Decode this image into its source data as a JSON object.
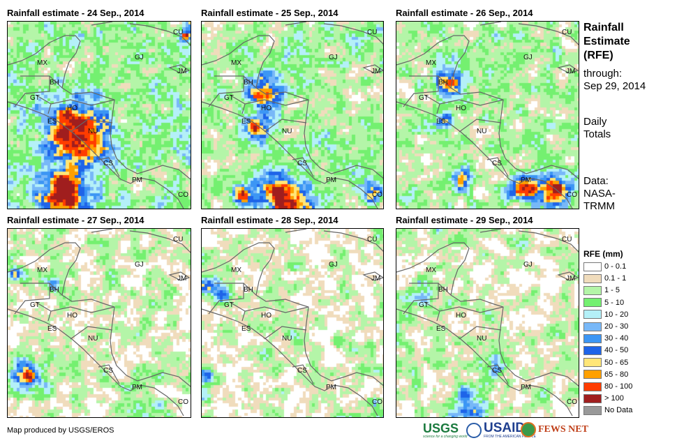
{
  "panels": [
    {
      "title": "Rainfall estimate - 24 Sep., 2014"
    },
    {
      "title": "Rainfall estimate - 25 Sep., 2014"
    },
    {
      "title": "Rainfall estimate - 26 Sep., 2014"
    },
    {
      "title": "Rainfall estimate - 27 Sep., 2014"
    },
    {
      "title": "Rainfall estimate - 28 Sep., 2014"
    },
    {
      "title": "Rainfall estimate - 29 Sep., 2014"
    }
  ],
  "country_labels": [
    "MX",
    "BH",
    "GT",
    "HO",
    "ES",
    "NU",
    "CS",
    "PM",
    "CO",
    "CU",
    "GJ",
    "JM"
  ],
  "side": {
    "title_lines": [
      "Rainfall",
      "Estimate",
      "(RFE)"
    ],
    "through": "through:",
    "date": "Sep 29, 2014",
    "daily": "Daily",
    "totals": "Totals",
    "data_label": "Data:",
    "source1": "NASA-",
    "source2": "TRMM"
  },
  "legend": {
    "title": "RFE (mm)",
    "items": [
      {
        "label": "0 - 0.1",
        "color": "#ffffff"
      },
      {
        "label": "0.1 - 1",
        "color": "#f0dcbc"
      },
      {
        "label": "1 - 5",
        "color": "#b4f5a8"
      },
      {
        "label": "5 - 10",
        "color": "#74f070"
      },
      {
        "label": "10 - 20",
        "color": "#b4f0f8"
      },
      {
        "label": "20 - 30",
        "color": "#78b8f8"
      },
      {
        "label": "30 - 40",
        "color": "#3c96f4"
      },
      {
        "label": "40 - 50",
        "color": "#1e64e8"
      },
      {
        "label": "50 - 65",
        "color": "#ffe678"
      },
      {
        "label": "65 - 80",
        "color": "#ffa000"
      },
      {
        "label": "80 - 100",
        "color": "#ff3c00"
      },
      {
        "label": "> 100",
        "color": "#a01e1e"
      },
      {
        "label": "No Data",
        "color": "#999999"
      }
    ]
  },
  "credit": "Map produced by USGS/EROS",
  "logos": {
    "usgs": "USGS",
    "usgs_tag": "science for a changing world",
    "usaid": "USAID",
    "usaid_tag": "FROM THE AMERICAN PEOPLE",
    "fews": "FEWS NET"
  }
}
